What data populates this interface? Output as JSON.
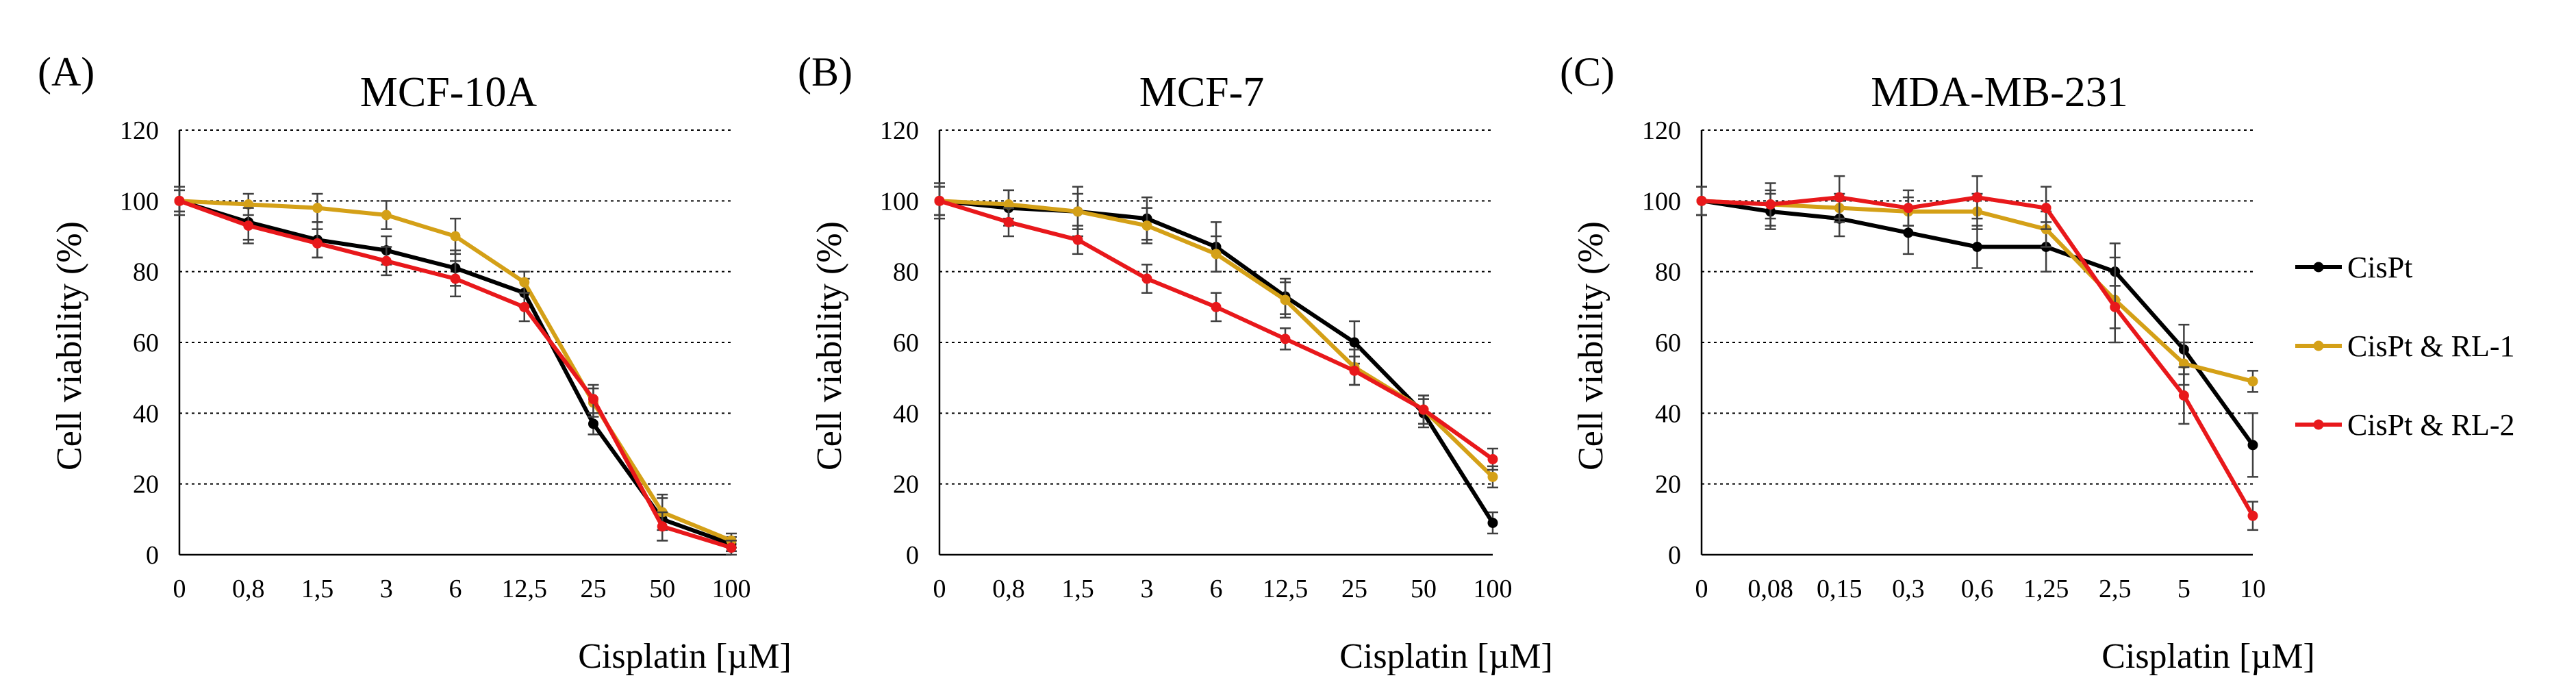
{
  "colors": {
    "CisPt": "#000000",
    "CisPt & RL-1": "#D4A017",
    "CisPt & RL-2": "#E8181B"
  },
  "legend": [
    "CisPt",
    "CisPt & RL-1",
    "CisPt & RL-2"
  ],
  "chart_data": [
    {
      "type": "line",
      "panel": "(A)",
      "title": "MCF-10A",
      "xlabel": "Cisplatin [µM]",
      "ylabel": "Cell viability (%)",
      "ylim": [
        0,
        120
      ],
      "yticks": [
        0,
        20,
        40,
        60,
        80,
        100,
        120
      ],
      "grid": true,
      "categories": [
        "0",
        "0,8",
        "1,5",
        "3",
        "6",
        "12,5",
        "25",
        "50",
        "100"
      ],
      "series": [
        {
          "name": "CisPt",
          "values": [
            100,
            94,
            89,
            86,
            81,
            74,
            37,
            10,
            3
          ],
          "errors": [
            4,
            5,
            5,
            4,
            5,
            4,
            3,
            6,
            2
          ]
        },
        {
          "name": "CisPt & RL-1",
          "values": [
            100,
            99,
            98,
            96,
            90,
            77,
            43,
            12,
            4
          ],
          "errors": [
            3,
            3,
            4,
            4,
            5,
            3,
            4,
            5,
            2
          ]
        },
        {
          "name": "CisPt & RL-2",
          "values": [
            100,
            93,
            88,
            83,
            78,
            70,
            44,
            8,
            2
          ],
          "errors": [
            3,
            5,
            4,
            4,
            5,
            4,
            4,
            4,
            2
          ]
        }
      ]
    },
    {
      "type": "line",
      "panel": "(B)",
      "title": "MCF-7",
      "xlabel": "Cisplatin [µM]",
      "ylabel": "Cell viability (%)",
      "ylim": [
        0,
        120
      ],
      "yticks": [
        0,
        20,
        40,
        60,
        80,
        100,
        120
      ],
      "grid": true,
      "categories": [
        "0",
        "0,8",
        "1,5",
        "3",
        "6",
        "12,5",
        "25",
        "50",
        "100"
      ],
      "series": [
        {
          "name": "CisPt",
          "values": [
            100,
            98,
            97,
            95,
            87,
            73,
            60,
            40,
            9
          ],
          "errors": [
            5,
            5,
            7,
            6,
            7,
            5,
            6,
            4,
            3
          ]
        },
        {
          "name": "CisPt & RL-1",
          "values": [
            100,
            99,
            97,
            93,
            85,
            72,
            53,
            41,
            22
          ],
          "errors": [
            4,
            4,
            5,
            5,
            5,
            5,
            5,
            4,
            3
          ]
        },
        {
          "name": "CisPt & RL-2",
          "values": [
            100,
            94,
            89,
            78,
            70,
            61,
            52,
            41,
            27
          ],
          "errors": [
            4,
            4,
            4,
            4,
            4,
            3,
            4,
            4,
            3
          ]
        }
      ]
    },
    {
      "type": "line",
      "panel": "(C)",
      "title": "MDA-MB-231",
      "xlabel": "Cisplatin [µM]",
      "ylabel": "Cell viability (%)",
      "ylim": [
        0,
        120
      ],
      "yticks": [
        0,
        20,
        40,
        60,
        80,
        100,
        120
      ],
      "grid": true,
      "categories": [
        "0",
        "0,08",
        "0,15",
        "0,3",
        "0,6",
        "1,25",
        "2,5",
        "5",
        "10"
      ],
      "series": [
        {
          "name": "CisPt",
          "values": [
            100,
            97,
            95,
            91,
            87,
            87,
            80,
            58,
            31
          ],
          "errors": [
            4,
            5,
            5,
            6,
            6,
            7,
            8,
            7,
            9
          ]
        },
        {
          "name": "CisPt & RL-1",
          "values": [
            100,
            99,
            98,
            97,
            97,
            92,
            72,
            54,
            49
          ],
          "errors": [
            4,
            4,
            4,
            4,
            5,
            5,
            12,
            6,
            3
          ]
        },
        {
          "name": "CisPt & RL-2",
          "values": [
            100,
            99,
            101,
            98,
            101,
            98,
            70,
            45,
            11
          ],
          "errors": [
            4,
            6,
            6,
            5,
            6,
            6,
            6,
            8,
            4
          ]
        }
      ]
    }
  ]
}
